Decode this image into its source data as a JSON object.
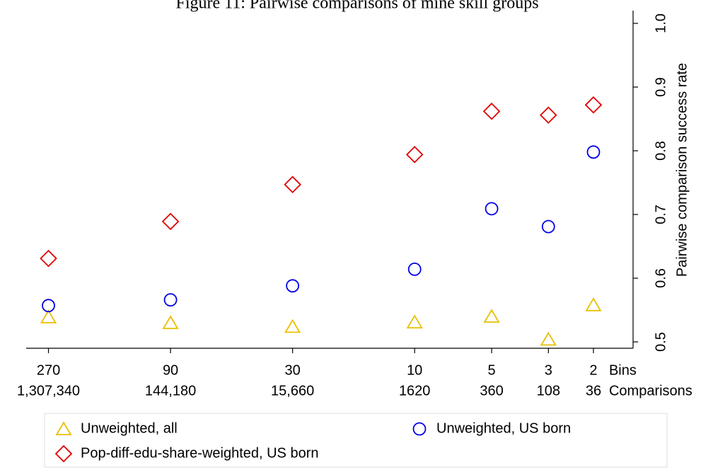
{
  "chart_data": {
    "type": "scatter",
    "title": "Figure 11: Pairwise comparisons of mine skill groups",
    "ylabel": "Pairwise comparison success rate",
    "xlabel": "Bins",
    "comparisons_label": "Comparisons",
    "x": [
      270,
      90,
      30,
      10,
      5,
      3,
      2
    ],
    "comparisons": [
      "1,307,340",
      "144,180",
      "15,660",
      "1620",
      "360",
      "108",
      "36"
    ],
    "xscale": "log",
    "xreversed": true,
    "xlim": [
      330,
      1.4
    ],
    "xticks": [
      270,
      90,
      30,
      10,
      5,
      3,
      2
    ],
    "ylim": [
      0.49,
      1.02
    ],
    "yticks": [
      0.5,
      0.6,
      0.7,
      0.8,
      0.9,
      {
        "value": 1,
        "label": "1.0"
      }
    ],
    "yaxis_side": "right",
    "series": [
      {
        "name": "Unweighted, all",
        "color": "#e8c000",
        "marker": "triangle",
        "values": [
          0.539,
          0.53,
          0.524,
          0.531,
          0.54,
          0.504,
          0.558
        ]
      },
      {
        "name": "Unweighted, US born",
        "color": "#0000e6",
        "marker": "circle",
        "values": [
          0.557,
          0.566,
          0.588,
          0.614,
          0.709,
          0.681,
          0.798
        ]
      },
      {
        "name": "Pop-diff-edu-share-weighted, US born",
        "color": "#e00000",
        "marker": "diamond",
        "values": [
          0.631,
          0.689,
          0.747,
          0.794,
          0.862,
          0.856,
          0.872
        ]
      }
    ]
  }
}
